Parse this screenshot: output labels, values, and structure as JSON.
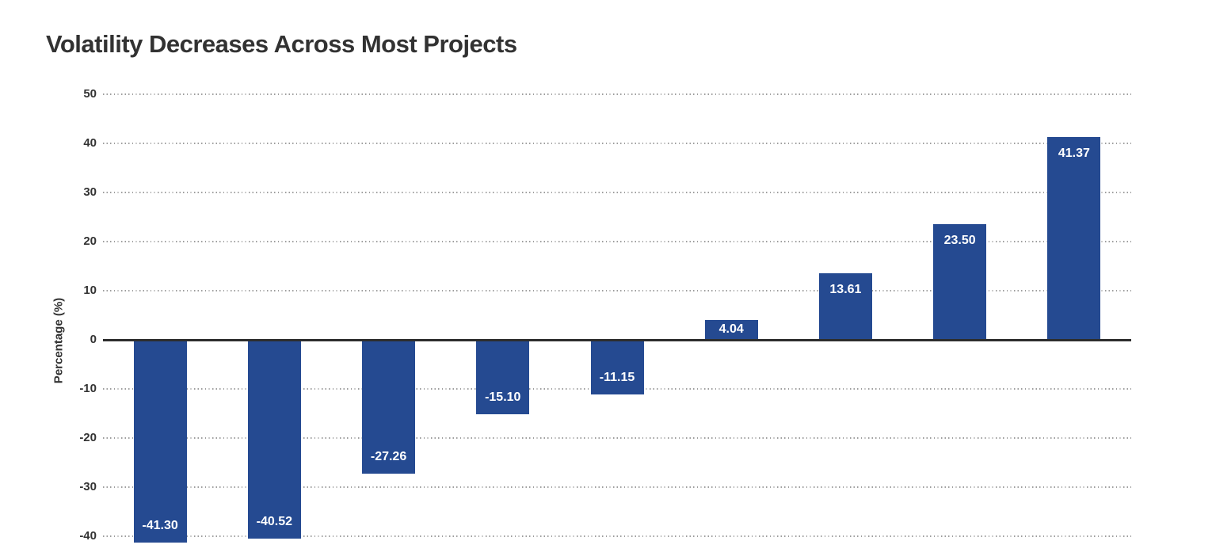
{
  "chart_data": {
    "type": "bar",
    "title": "Volatility Decreases Across Most Projects",
    "ylabel": "Percentage (%)",
    "xlabel": "",
    "values": [
      -41.3,
      -40.52,
      -27.26,
      -15.1,
      -11.15,
      4.04,
      13.61,
      23.5,
      41.37
    ],
    "bar_labels": [
      "-41.30",
      "-40.52",
      "-27.26",
      "-15.10",
      "-11.15",
      "4.04",
      "13.61",
      "23.50",
      "41.37"
    ],
    "yticks": [
      50,
      40,
      30,
      20,
      10,
      0,
      -10,
      -20,
      -30,
      -40
    ],
    "ylim": [
      -45,
      52
    ],
    "grid": "horizontal-dotted",
    "legend_position": "none",
    "zero_line": true,
    "bar_value_label_position": "inside-end",
    "colors": {
      "bar": "#254a91",
      "title": "#323232",
      "tick_label": "#333333",
      "axis_label": "#333333",
      "grid_dot": "#9e9e9e",
      "zero_line": "#2d2d2d",
      "value_label": "#ffffff",
      "background": "#ffffff"
    }
  }
}
